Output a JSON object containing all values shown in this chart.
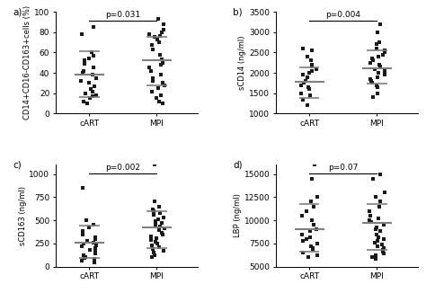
{
  "panels": [
    {
      "label": "a)",
      "ylabel": "CD14+CD16-CD163+cells (%)",
      "ylim": [
        0,
        100
      ],
      "yticks": [
        0,
        20,
        40,
        60,
        80,
        100
      ],
      "pvalue": "p=0.031",
      "groups": {
        "cART": {
          "points": [
            85,
            78,
            60,
            57,
            54,
            52,
            49,
            45,
            42,
            40,
            38,
            35,
            32,
            30,
            27,
            24,
            22,
            20,
            18,
            17,
            15,
            12,
            10
          ],
          "median": 38,
          "q1": 16,
          "q3": 61
        },
        "MPI": {
          "points": [
            93,
            88,
            82,
            80,
            78,
            76,
            75,
            73,
            70,
            67,
            63,
            58,
            53,
            50,
            48,
            45,
            42,
            38,
            35,
            32,
            30,
            28,
            25,
            22,
            18,
            15,
            12,
            10
          ],
          "median": 52,
          "q1": 28,
          "q3": 75
        }
      }
    },
    {
      "label": "b)",
      "ylabel": "sCD14 (ng/ml)",
      "ylim": [
        1000,
        3500
      ],
      "yticks": [
        1000,
        1500,
        2000,
        2500,
        3000,
        3500
      ],
      "pvalue": "p=0.004",
      "groups": {
        "cART": {
          "points": [
            2600,
            2550,
            2400,
            2300,
            2200,
            2150,
            2100,
            2050,
            2000,
            1950,
            1900,
            1800,
            1750,
            1700,
            1650,
            1600,
            1500,
            1450,
            1350,
            1200
          ],
          "median": 1780,
          "q1": 1380,
          "q3": 2130
        },
        "MPI": {
          "points": [
            3200,
            3000,
            2750,
            2700,
            2600,
            2550,
            2500,
            2450,
            2400,
            2350,
            2300,
            2250,
            2200,
            2150,
            2100,
            2050,
            2000,
            1950,
            1900,
            1850,
            1800,
            1750,
            1700,
            1650,
            1500,
            1400
          ],
          "median": 2120,
          "q1": 1740,
          "q3": 2560
        }
      }
    },
    {
      "label": "c)",
      "ylabel": "sCD163 (ng/ml)",
      "ylim": [
        0,
        1100
      ],
      "yticks": [
        0,
        250,
        500,
        750,
        1000
      ],
      "pvalue": "p=0.002",
      "groups": {
        "cART": {
          "points": [
            850,
            500,
            450,
            420,
            380,
            350,
            320,
            300,
            280,
            260,
            250,
            230,
            220,
            200,
            180,
            160,
            140,
            120,
            100,
            90,
            80,
            65,
            50
          ],
          "median": 255,
          "q1": 90,
          "q3": 440
        },
        "MPI": {
          "points": [
            1100,
            700,
            650,
            620,
            600,
            580,
            560,
            530,
            510,
            490,
            470,
            450,
            430,
            410,
            390,
            370,
            350,
            330,
            310,
            290,
            270,
            250,
            230,
            210,
            190,
            170,
            150,
            120,
            100
          ],
          "median": 425,
          "q1": 200,
          "q3": 600
        }
      }
    },
    {
      "label": "d)",
      "ylabel": "LBP (ng/ml)",
      "ylim": [
        5000,
        16000
      ],
      "yticks": [
        5000,
        7500,
        10000,
        12500,
        15000
      ],
      "pvalue": "p=0.07",
      "groups": {
        "cART": {
          "points": [
            16000,
            14500,
            12500,
            12000,
            11500,
            11000,
            10500,
            10000,
            9500,
            9000,
            8800,
            8500,
            8200,
            8000,
            7800,
            7500,
            7200,
            7000,
            6800,
            6500,
            6200,
            6000
          ],
          "median": 9000,
          "q1": 6600,
          "q3": 11800
        },
        "MPI": {
          "points": [
            15000,
            14500,
            13000,
            12500,
            12000,
            11500,
            11000,
            10500,
            10200,
            10000,
            9800,
            9500,
            9200,
            9000,
            8800,
            8500,
            8200,
            8000,
            7800,
            7600,
            7400,
            7200,
            7000,
            6800,
            6600,
            6400,
            6200,
            6000,
            5800
          ],
          "median": 9700,
          "q1": 6800,
          "q3": 11800
        }
      }
    }
  ],
  "dot_color": "#1a1a1a",
  "dot_size": 7,
  "line_color": "#7f7f7f",
  "line_width": 1.5,
  "font_size": 6.5,
  "label_fontsize": 7.5,
  "pvalue_fontsize": 6.5
}
